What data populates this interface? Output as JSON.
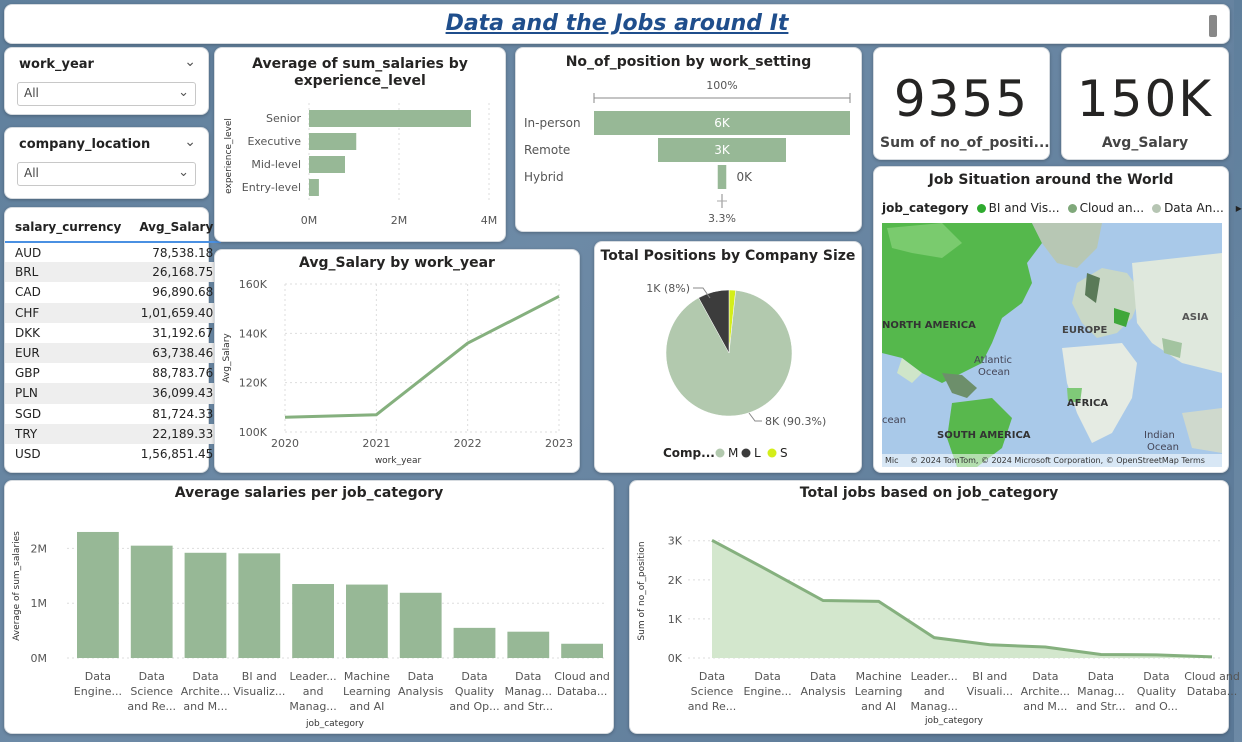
{
  "header": {
    "title": "Data and the Jobs around It"
  },
  "slicers": {
    "work_year": {
      "label": "work_year",
      "value": "All"
    },
    "company_location": {
      "label": "company_location",
      "value": "All"
    }
  },
  "currency_table": {
    "headers": [
      "salary_currency",
      "Avg_Salary"
    ],
    "rows": [
      [
        "AUD",
        "78,538.18"
      ],
      [
        "BRL",
        "26,168.75"
      ],
      [
        "CAD",
        "96,890.68"
      ],
      [
        "CHF",
        "1,01,659.40"
      ],
      [
        "DKK",
        "31,192.67"
      ],
      [
        "EUR",
        "63,738.46"
      ],
      [
        "GBP",
        "88,783.76"
      ],
      [
        "PLN",
        "36,099.43"
      ],
      [
        "SGD",
        "81,724.33"
      ],
      [
        "TRY",
        "22,189.33"
      ],
      [
        "USD",
        "1,56,851.45"
      ]
    ]
  },
  "kpis": {
    "positions": {
      "value": "9355",
      "label": "Sum of no_of_positi..."
    },
    "salary": {
      "value": "150K",
      "label": "Avg_Salary"
    }
  },
  "colors": {
    "bar": "#97b896",
    "line": "#85b07e",
    "area": "#d3e7cd",
    "pie_m": "#b2c9ae",
    "pie_l": "#3c3c3c",
    "pie_s": "#d4ee1a"
  },
  "charts": {
    "exp": {
      "title": "Average of sum_salaries by experience_level",
      "ylabel": "experience_level",
      "categories": [
        "Senior",
        "Executive",
        "Mid-level",
        "Entry-level"
      ],
      "values": [
        3600000,
        1050000,
        800000,
        220000
      ],
      "xticks": [
        "0M",
        "2M",
        "4M"
      ],
      "xmax": 4000000
    },
    "funnel": {
      "title": "No_of_position by work_setting",
      "top_label": "100%",
      "bottom_label": "3.3%",
      "categories": [
        "In-person",
        "Remote",
        "Hybrid"
      ],
      "values": [
        6000,
        3000,
        200
      ],
      "labels": [
        "6K",
        "3K",
        "0K"
      ]
    },
    "line": {
      "title": "Avg_Salary by work_year",
      "ylabel": "Avg_Salary",
      "xlabel": "work_year",
      "x": [
        "2020",
        "2021",
        "2022",
        "2023"
      ],
      "y": [
        106000,
        107000,
        136000,
        155000
      ],
      "yticks": [
        "160K",
        "140K",
        "120K",
        "100K"
      ],
      "ylim": [
        100000,
        160000
      ]
    },
    "pie": {
      "title": "Total Positions by Company Size",
      "legend_title": "Comp...",
      "slices": [
        {
          "name": "M",
          "value": 90.3,
          "label": "8K (90.3%)"
        },
        {
          "name": "L",
          "value": 8,
          "label": "1K (8%)"
        },
        {
          "name": "S",
          "value": 1.7,
          "label": ""
        }
      ]
    },
    "map": {
      "title": "Job Situation around the World",
      "legend_title": "job_category",
      "legend_items": [
        "BI and Vis...",
        "Cloud an...",
        "Data An..."
      ],
      "labels": {
        "na": "NORTH AMERICA",
        "eu": "EUROPE",
        "asia": "ASIA",
        "atl": "Atlantic\nOcean",
        "af": "AFRICA",
        "sa": "SOUTH AMERICA",
        "ind": "Indian\nOcean",
        "ocean": "cean",
        "ms": "Mic"
      },
      "credits": "© 2024 TomTom, © 2024 Microsoft Corporation, © OpenStreetMap  Terms"
    },
    "avg_cat": {
      "title": "Average salaries per job_category",
      "ylabel": "Average of sum_salaries",
      "xlabel": "job_category",
      "categories": [
        "Data Engine...",
        "Data Science and Re...",
        "Data Archite... and M...",
        "BI and Visualiz...",
        "Leader... and Manag...",
        "Machine Learning and AI",
        "Data Analysis",
        "Data Quality and Op...",
        "Data Manag... and Str...",
        "Cloud and Databa..."
      ],
      "values": [
        2300000,
        2050000,
        1920000,
        1910000,
        1350000,
        1340000,
        1190000,
        550000,
        480000,
        260000
      ],
      "yticks": [
        "2M",
        "1M",
        "0M"
      ],
      "ymax": 2500000
    },
    "total_cat": {
      "title": "Total jobs based on job_category",
      "ylabel": "Sum of no_of_position",
      "xlabel": "job_category",
      "categories": [
        "Data Science and Re...",
        "Data Engine...",
        "Data Analysis",
        "Machine Learning and AI",
        "Leader... and Manag...",
        "BI and Visuali...",
        "Data Archite... and M...",
        "Data Manag... and Str...",
        "Data Quality and O...",
        "Cloud and Databa..."
      ],
      "values": [
        3010,
        2250,
        1470,
        1450,
        520,
        340,
        280,
        90,
        80,
        30
      ],
      "yticks": [
        "3K",
        "2K",
        "1K",
        "0K"
      ],
      "ymax": 3300
    }
  }
}
